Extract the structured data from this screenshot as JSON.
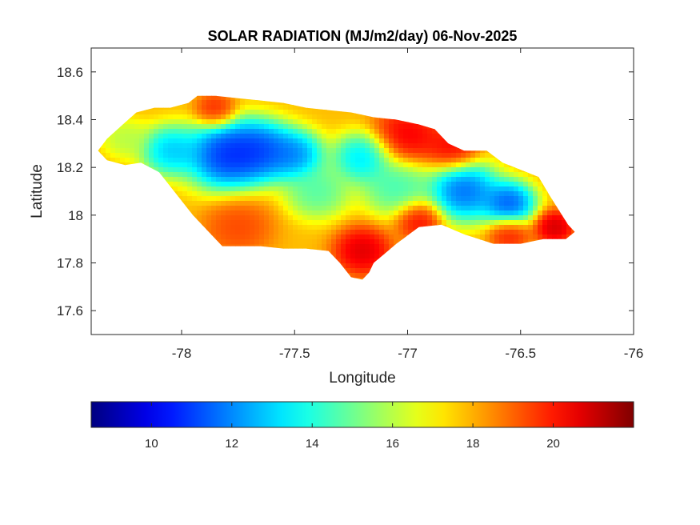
{
  "chart_data": {
    "type": "heatmap",
    "title": "SOLAR RADIATION (MJ/m2/day) 06-Nov-2025",
    "xlabel": "Longitude",
    "ylabel": "Latitude",
    "xlim": [
      -78.4,
      -76.0
    ],
    "ylim": [
      17.5,
      18.7
    ],
    "xticks": [
      -78,
      -77.5,
      -77,
      -76.5,
      -76
    ],
    "yticks": [
      17.6,
      17.8,
      18,
      18.2,
      18.4,
      18.6
    ],
    "grid": false,
    "colorbar": {
      "orientation": "horizontal",
      "location": "below",
      "colormap": "jet",
      "range": [
        8.5,
        22.0
      ],
      "ticks": [
        10,
        12,
        14,
        16,
        18,
        20
      ]
    },
    "region_outline": [
      [
        -78.37,
        18.27
      ],
      [
        -78.33,
        18.32
      ],
      [
        -78.26,
        18.38
      ],
      [
        -78.2,
        18.43
      ],
      [
        -78.12,
        18.45
      ],
      [
        -78.05,
        18.45
      ],
      [
        -77.97,
        18.47
      ],
      [
        -77.93,
        18.5
      ],
      [
        -77.85,
        18.5
      ],
      [
        -77.75,
        18.49
      ],
      [
        -77.65,
        18.48
      ],
      [
        -77.55,
        18.47
      ],
      [
        -77.45,
        18.45
      ],
      [
        -77.35,
        18.44
      ],
      [
        -77.25,
        18.43
      ],
      [
        -77.15,
        18.41
      ],
      [
        -77.05,
        18.4
      ],
      [
        -76.95,
        18.38
      ],
      [
        -76.88,
        18.36
      ],
      [
        -76.82,
        18.3
      ],
      [
        -76.75,
        18.27
      ],
      [
        -76.65,
        18.27
      ],
      [
        -76.58,
        18.22
      ],
      [
        -76.5,
        18.19
      ],
      [
        -76.42,
        18.16
      ],
      [
        -76.37,
        18.08
      ],
      [
        -76.33,
        18.02
      ],
      [
        -76.29,
        17.96
      ],
      [
        -76.26,
        17.93
      ],
      [
        -76.3,
        17.9
      ],
      [
        -76.4,
        17.9
      ],
      [
        -76.5,
        17.88
      ],
      [
        -76.62,
        17.88
      ],
      [
        -76.75,
        17.92
      ],
      [
        -76.85,
        17.96
      ],
      [
        -76.95,
        17.95
      ],
      [
        -77.05,
        17.88
      ],
      [
        -77.1,
        17.84
      ],
      [
        -77.15,
        17.8
      ],
      [
        -77.17,
        17.76
      ],
      [
        -77.2,
        17.73
      ],
      [
        -77.25,
        17.74
      ],
      [
        -77.3,
        17.8
      ],
      [
        -77.35,
        17.85
      ],
      [
        -77.45,
        17.86
      ],
      [
        -77.55,
        17.86
      ],
      [
        -77.65,
        17.87
      ],
      [
        -77.75,
        17.87
      ],
      [
        -77.82,
        17.87
      ],
      [
        -77.88,
        17.93
      ],
      [
        -77.95,
        18.0
      ],
      [
        -78.0,
        18.06
      ],
      [
        -78.05,
        18.12
      ],
      [
        -78.1,
        18.18
      ],
      [
        -78.18,
        18.22
      ],
      [
        -78.25,
        18.21
      ],
      [
        -78.33,
        18.23
      ],
      [
        -78.37,
        18.27
      ]
    ],
    "field_features": [
      {
        "lon": -77.8,
        "lat": 18.25,
        "value": 8.8,
        "spread": 0.14
      },
      {
        "lon": -77.65,
        "lat": 18.27,
        "value": 9.5,
        "spread": 0.12
      },
      {
        "lon": -77.5,
        "lat": 18.25,
        "value": 10.5,
        "spread": 0.1
      },
      {
        "lon": -78.05,
        "lat": 18.27,
        "value": 11.5,
        "spread": 0.1
      },
      {
        "lon": -77.2,
        "lat": 18.24,
        "value": 11.8,
        "spread": 0.1
      },
      {
        "lon": -76.75,
        "lat": 18.1,
        "value": 9.8,
        "spread": 0.12
      },
      {
        "lon": -76.55,
        "lat": 18.05,
        "value": 9.6,
        "spread": 0.09
      },
      {
        "lon": -77.4,
        "lat": 18.1,
        "value": 13.8,
        "spread": 0.11
      },
      {
        "lon": -77.05,
        "lat": 18.12,
        "value": 13.5,
        "spread": 0.12
      },
      {
        "lon": -78.25,
        "lat": 18.32,
        "value": 15.5,
        "spread": 0.08
      },
      {
        "lon": -77.0,
        "lat": 18.33,
        "value": 21.2,
        "spread": 0.12
      },
      {
        "lon": -76.8,
        "lat": 18.28,
        "value": 21.0,
        "spread": 0.09
      },
      {
        "lon": -77.85,
        "lat": 18.44,
        "value": 20.5,
        "spread": 0.07
      },
      {
        "lon": -77.2,
        "lat": 17.85,
        "value": 21.6,
        "spread": 0.1
      },
      {
        "lon": -76.95,
        "lat": 17.98,
        "value": 21.0,
        "spread": 0.08
      },
      {
        "lon": -76.35,
        "lat": 17.95,
        "value": 21.8,
        "spread": 0.07
      },
      {
        "lon": -77.75,
        "lat": 17.95,
        "value": 19.8,
        "spread": 0.12
      },
      {
        "lon": -76.55,
        "lat": 17.92,
        "value": 20.5,
        "spread": 0.07
      }
    ],
    "field_background": 17.8
  }
}
